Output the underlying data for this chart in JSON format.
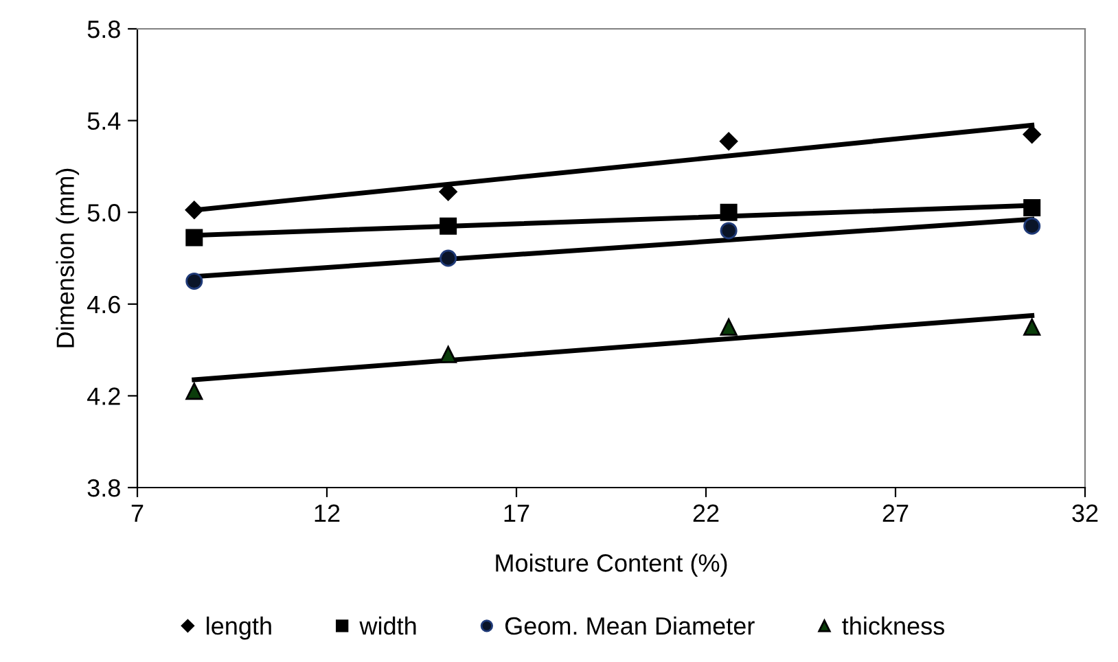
{
  "chart_data": {
    "type": "scatter",
    "xlabel": "Moisture Content (%)",
    "ylabel": "Dimension (mm)",
    "xlim": [
      7,
      32
    ],
    "xticks": [
      7,
      12,
      17,
      22,
      27,
      32
    ],
    "ylim": [
      3.8,
      5.8
    ],
    "yticks": [
      {
        "value": 3.8,
        "label": "3.8"
      },
      {
        "value": 4.2,
        "label": "4.2"
      },
      {
        "value": 4.6,
        "label": "4.6"
      },
      {
        "value": 5.0,
        "label": "5.0"
      },
      {
        "value": 5.4,
        "label": "5.4"
      },
      {
        "value": 5.8,
        "label": "5.8"
      }
    ],
    "grid": false,
    "legend": "bottom",
    "series": [
      {
        "name": "length",
        "color": "#000000",
        "marker": "diamond",
        "x": [
          8.5,
          15.2,
          22.6,
          30.6
        ],
        "values": [
          5.01,
          5.09,
          5.31,
          5.34
        ]
      },
      {
        "name": "width",
        "color": "#000000",
        "marker": "square",
        "x": [
          8.5,
          15.2,
          22.6,
          30.6
        ],
        "values": [
          4.89,
          4.94,
          5.0,
          5.02
        ]
      },
      {
        "name": "Geom. Mean Diameter",
        "color": "#0a1428",
        "marker": "circle",
        "x": [
          8.5,
          15.2,
          22.6,
          30.6
        ],
        "values": [
          4.7,
          4.8,
          4.92,
          4.94
        ]
      },
      {
        "name": "thickness",
        "color": "#0b3d0b",
        "marker": "triangle",
        "x": [
          8.5,
          15.2,
          22.6,
          30.6
        ],
        "values": [
          4.22,
          4.38,
          4.5,
          4.5
        ]
      },
      {
        "type": "line",
        "color": "#000000",
        "marker": "none",
        "x": [
          8.5,
          30.6
        ],
        "values": [
          5.01,
          5.38
        ]
      },
      {
        "type": "line",
        "color": "#000000",
        "marker": "none",
        "x": [
          8.5,
          30.6
        ],
        "values": [
          4.9,
          5.03
        ]
      },
      {
        "type": "line",
        "color": "#000000",
        "marker": "none",
        "x": [
          8.5,
          30.6
        ],
        "values": [
          4.72,
          4.97
        ]
      },
      {
        "type": "line",
        "color": "#000000",
        "marker": "none",
        "x": [
          8.5,
          30.6
        ],
        "values": [
          4.27,
          4.55
        ]
      }
    ]
  }
}
